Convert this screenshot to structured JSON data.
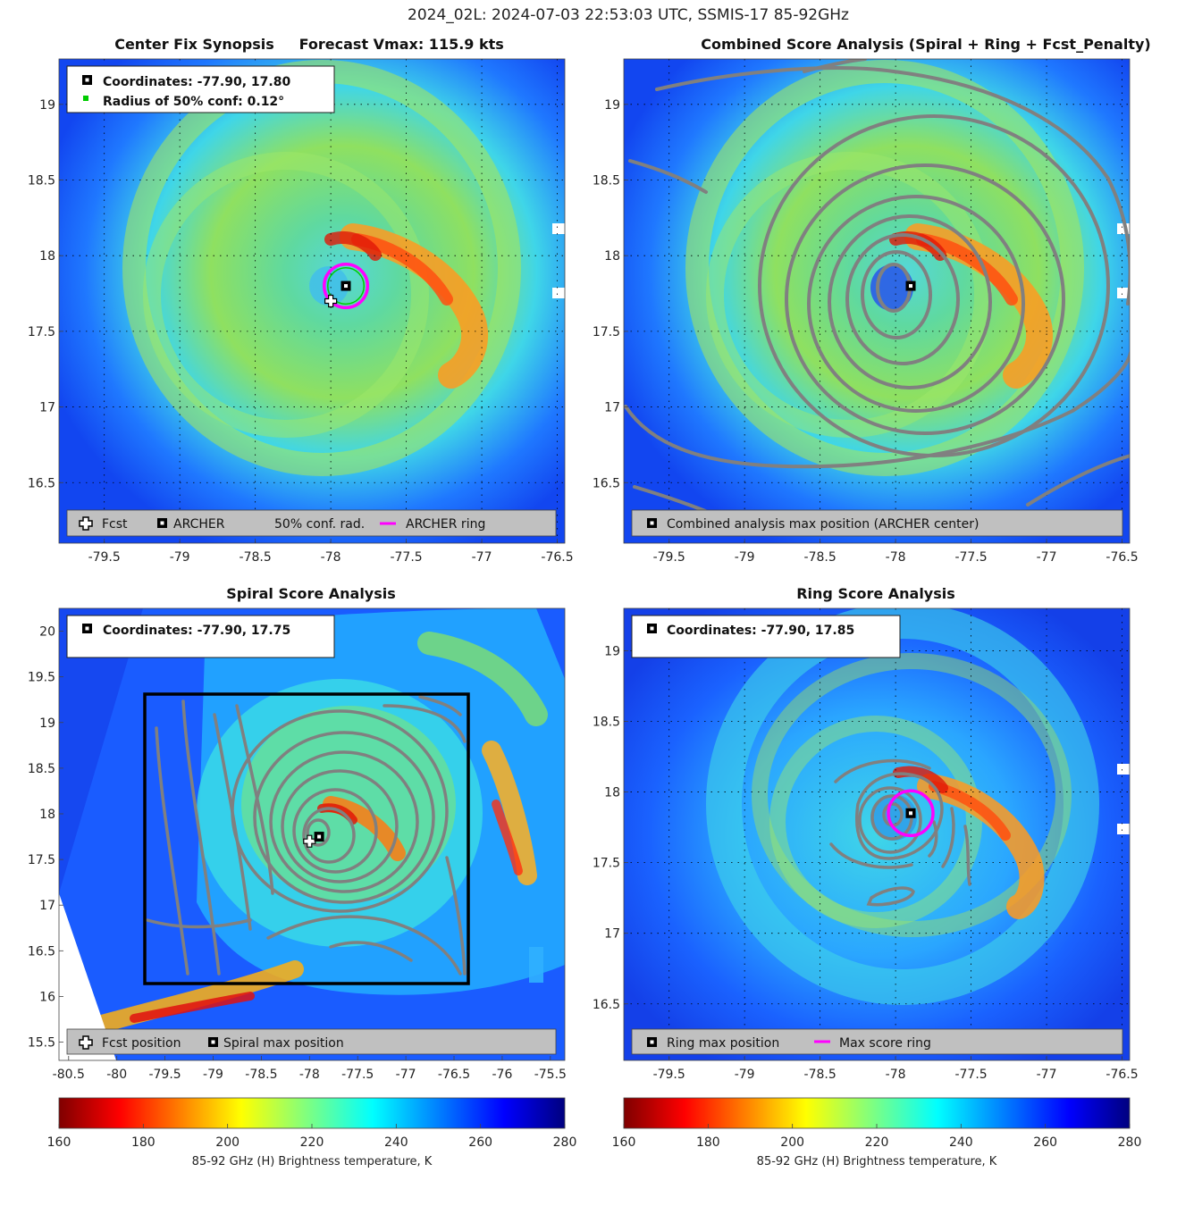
{
  "figure_title": "2024_02L: 2024-07-03 22:53:03 UTC, SSMIS-17 85-92GHz",
  "colors": {
    "forecast_marker": "#ffffff",
    "archer_ring": "#ff00ff",
    "conf_radius": "#00cc00",
    "contour": "#808080",
    "legend_box": "#c0c0c0",
    "analysis_box": "#000000"
  },
  "chart_data": [
    {
      "type": "heatmap",
      "title": "Center Fix Synopsis     Forecast Vmax: 115.9 kts",
      "xlim": [
        -79.8,
        -76.45
      ],
      "ylim": [
        16.1,
        19.3
      ],
      "xticks": [
        -79.5,
        -79,
        -78.5,
        -78,
        -77.5,
        -77,
        -76.5
      ],
      "yticks": [
        16.5,
        17,
        17.5,
        18,
        18.5,
        19
      ],
      "center": {
        "lon": -77.9,
        "lat": 17.8
      },
      "forecast": {
        "lon": -78.0,
        "lat": 17.7
      },
      "conf_radius_deg": 0.12,
      "info_lines": [
        "Coordinates: -77.90, 17.80",
        "Radius of 50% conf: 0.12°"
      ],
      "legend": [
        "Fcst",
        "ARCHER",
        "50% conf. rad.",
        "ARCHER ring"
      ],
      "grid": "dotted"
    },
    {
      "type": "heatmap",
      "title": "Combined Score Analysis (Spiral + Ring + Fcst_Penalty)",
      "xlim": [
        -79.8,
        -76.45
      ],
      "ylim": [
        16.1,
        19.3
      ],
      "xticks": [
        -79.5,
        -79,
        -78.5,
        -78,
        -77.5,
        -77,
        -76.5
      ],
      "yticks": [
        16.5,
        17,
        17.5,
        18,
        18.5,
        19
      ],
      "center": {
        "lon": -77.9,
        "lat": 17.8
      },
      "legend": [
        "Combined analysis max position (ARCHER center)"
      ],
      "grid": "dotted"
    },
    {
      "type": "heatmap",
      "title": "Spiral Score Analysis",
      "xlim": [
        -80.6,
        -75.35
      ],
      "ylim": [
        15.3,
        20.25
      ],
      "xticks": [
        -80.5,
        -80,
        -79.5,
        -79,
        -78.5,
        -78,
        -77.5,
        -77,
        -76.5,
        -76,
        -75.5
      ],
      "yticks": [
        15.5,
        16,
        16.5,
        17,
        17.5,
        18,
        18.5,
        19,
        19.5,
        20
      ],
      "center": {
        "lon": -77.9,
        "lat": 17.75
      },
      "forecast": {
        "lon": -78.0,
        "lat": 17.7
      },
      "analysis_box": {
        "lon": [
          -79.75,
          -76.4
        ],
        "lat": [
          16.1,
          19.3
        ]
      },
      "info_lines": [
        "Coordinates: -77.90, 17.75"
      ],
      "legend": [
        "Fcst position",
        "Spiral max position"
      ],
      "grid": "none"
    },
    {
      "type": "heatmap",
      "title": "Ring Score Analysis",
      "xlim": [
        -79.8,
        -76.45
      ],
      "ylim": [
        16.1,
        19.3
      ],
      "xticks": [
        -79.5,
        -79,
        -78.5,
        -78,
        -77.5,
        -77,
        -76.5
      ],
      "yticks": [
        16.5,
        17,
        17.5,
        18,
        18.5,
        19
      ],
      "center": {
        "lon": -77.9,
        "lat": 17.85
      },
      "info_lines": [
        "Coordinates: -77.90, 17.85"
      ],
      "legend": [
        "Ring max position",
        "Max score ring"
      ],
      "grid": "dotted"
    }
  ],
  "colorbars": [
    {
      "label": "85-92 GHz (H) Brightness temperature, K",
      "range": [
        160,
        280
      ],
      "ticks": [
        "160",
        "180",
        "200",
        "220",
        "240",
        "260",
        "280"
      ]
    },
    {
      "label": "85-92 GHz (H) Brightness temperature, K",
      "range": [
        160,
        280
      ],
      "ticks": [
        "160",
        "180",
        "200",
        "220",
        "240",
        "260",
        "280"
      ]
    }
  ]
}
